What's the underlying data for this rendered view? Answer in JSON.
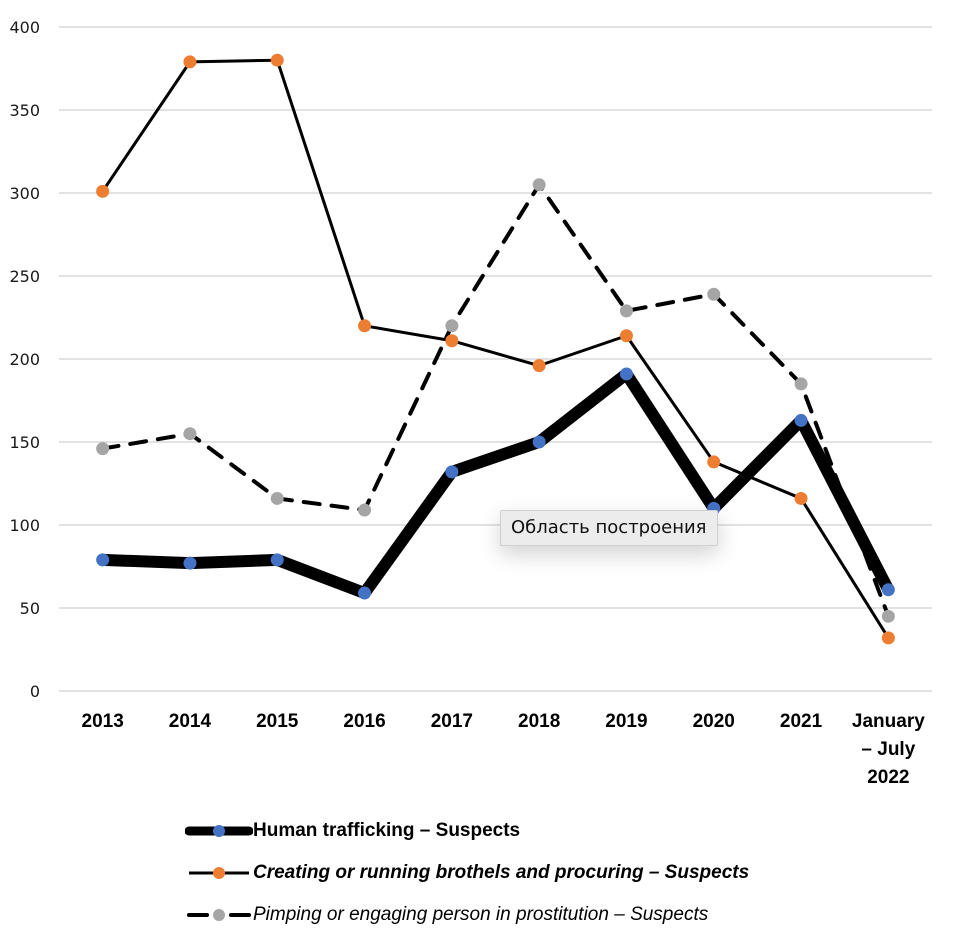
{
  "chart_data": {
    "type": "line",
    "title": "",
    "xlabel": "",
    "ylabel": "",
    "ylim": [
      0,
      400
    ],
    "yticks": [
      "0",
      "50",
      "100",
      "150",
      "200",
      "250",
      "300",
      "350",
      "400"
    ],
    "grid": true,
    "legend_position": "bottom",
    "categories": [
      "2013",
      "2014",
      "2015",
      "2016",
      "2017",
      "2018",
      "2019",
      "2020",
      "2021",
      "January – July 2022"
    ],
    "category_lines": [
      [
        "2013"
      ],
      [
        "2014"
      ],
      [
        "2015"
      ],
      [
        "2016"
      ],
      [
        "2017"
      ],
      [
        "2018"
      ],
      [
        "2019"
      ],
      [
        "2020"
      ],
      [
        "2021"
      ],
      [
        "January",
        "– July",
        "2022"
      ]
    ],
    "series": [
      {
        "name": "Human trafficking – Suspects",
        "marker_color": "#4472C4",
        "line_color": "#000000",
        "line_style": "solid-thick",
        "values": [
          79,
          77,
          79,
          59,
          132,
          150,
          191,
          110,
          163,
          61
        ]
      },
      {
        "name": "Creating or running brothels and procuring – Suspects",
        "marker_color": "#ED7D31",
        "line_color": "#000000",
        "line_style": "solid",
        "values": [
          301,
          379,
          380,
          220,
          211,
          196,
          214,
          138,
          116,
          32
        ]
      },
      {
        "name": "Pimping or engaging person in prostitution – Suspects",
        "marker_color": "#A5A5A5",
        "line_color": "#000000",
        "line_style": "dashed",
        "values": [
          146,
          155,
          116,
          109,
          220,
          305,
          229,
          239,
          185,
          45
        ]
      }
    ]
  },
  "tooltip": {
    "text": "Область построения"
  },
  "colors": {
    "grid": "#d9d9d9",
    "background": "#ffffff"
  }
}
